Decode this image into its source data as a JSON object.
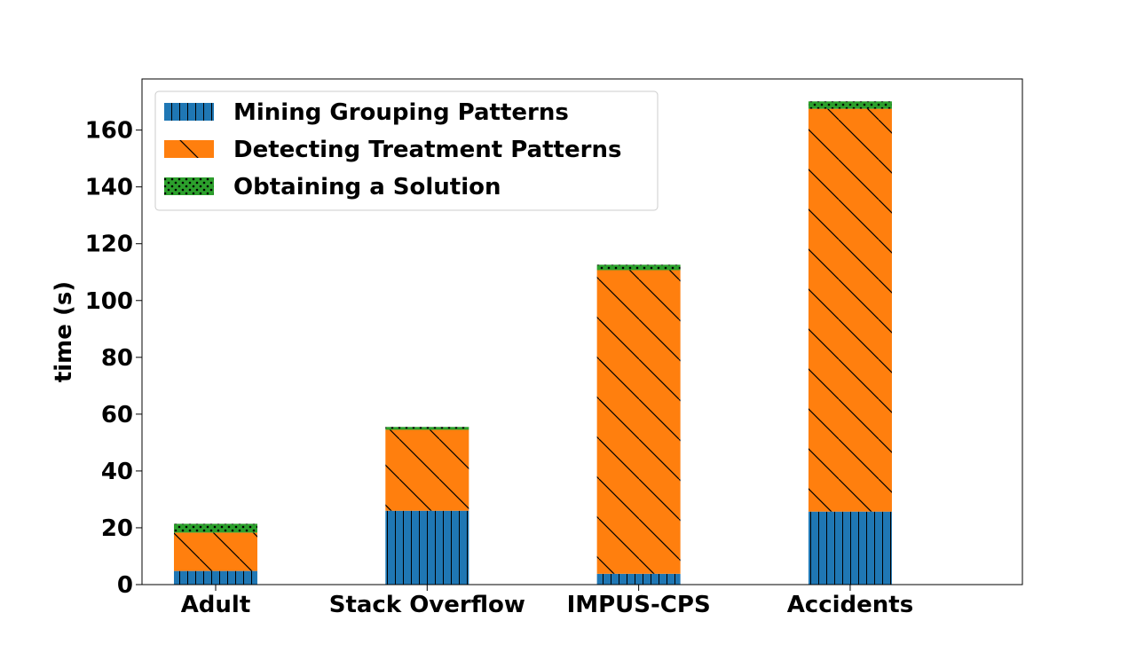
{
  "chart_data": {
    "type": "bar",
    "stacked": true,
    "title": "",
    "xlabel": "",
    "ylabel": "time (s)",
    "ylim": [
      0,
      178
    ],
    "yticks": [
      0,
      20,
      40,
      60,
      80,
      100,
      120,
      140,
      160
    ],
    "categories": [
      "Adult",
      "Stack Overflow",
      "IMPUS-CPS",
      "Accidents"
    ],
    "series": [
      {
        "name": "Mining Grouping Patterns",
        "color": "#1f77b4",
        "hatch": "vertical-lines",
        "values": [
          4.8,
          26.0,
          3.8,
          25.7
        ]
      },
      {
        "name": "Detecting Treatment Patterns",
        "color": "#ff7f0e",
        "hatch": "diagonal-lines",
        "values": [
          13.5,
          28.5,
          106.9,
          141.8
        ]
      },
      {
        "name": "Obtaining a Solution",
        "color": "#2ca02c",
        "hatch": "stars",
        "values": [
          3.1,
          1.0,
          1.9,
          2.6
        ]
      }
    ],
    "legend_position": "top-left",
    "grid": false
  }
}
